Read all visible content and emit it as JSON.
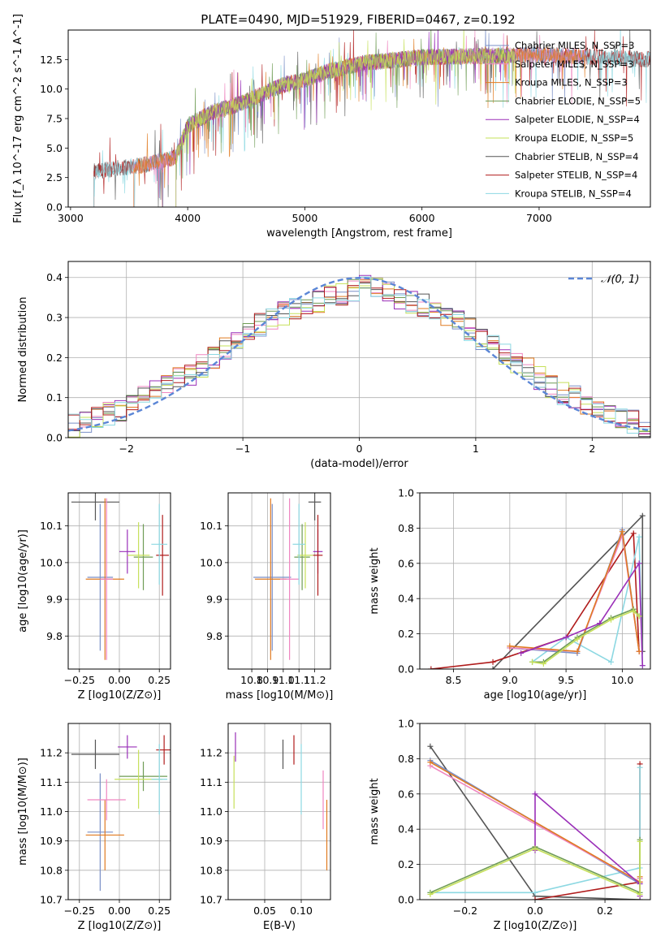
{
  "figure": {
    "title": "PLATE=0490, MJD=51929, FIBERID=0467, z=0.192"
  },
  "colors": {
    "Chabrier MILES": "#7a8fc7",
    "Salpeter MILES": "#ef86c0",
    "Kroupa MILES": "#e07b22",
    "Chabrier ELODIE": "#6f9c55",
    "Salpeter ELODIE": "#9a2fb8",
    "Kroupa ELODIE": "#c6e05a",
    "Chabrier STELIB": "#555555",
    "Salpeter STELIB": "#b01c1c",
    "Kroupa STELIB": "#8cd8e2",
    "gaussian": "#5b86d6"
  },
  "chart_data": [
    {
      "id": "spectrum",
      "type": "line",
      "xlabel": "wavelength [Angstrom, rest frame]",
      "ylabel": "Flux [f_λ 10^-17 erg cm^-2 s^-1 A^-1]",
      "xlim": [
        2980,
        7950
      ],
      "ylim": [
        0,
        15
      ],
      "xticks": [
        3000,
        4000,
        5000,
        6000,
        7000
      ],
      "yticks": [
        0.0,
        2.5,
        5.0,
        7.5,
        10.0,
        12.5
      ],
      "legend_position": "right",
      "legend": [
        "Chabrier MILES, N_SSP=3",
        "Salpeter MILES, N_SSP=3",
        "Kroupa MILES, N_SSP=3",
        "Chabrier ELODIE, N_SSP=5",
        "Salpeter ELODIE, N_SSP=4",
        "Kroupa ELODIE, N_SSP=5",
        "Chabrier STELIB, N_SSP=4",
        "Salpeter STELIB, N_SSP=4",
        "Kroupa STELIB, N_SSP=4"
      ],
      "continuum": [
        {
          "x": 3200,
          "y": 3.0
        },
        {
          "x": 3400,
          "y": 3.3
        },
        {
          "x": 3600,
          "y": 3.5
        },
        {
          "x": 3800,
          "y": 4.0
        },
        {
          "x": 3900,
          "y": 4.2
        },
        {
          "x": 4000,
          "y": 6.9
        },
        {
          "x": 4200,
          "y": 8.0
        },
        {
          "x": 4400,
          "y": 8.6
        },
        {
          "x": 4600,
          "y": 9.4
        },
        {
          "x": 4800,
          "y": 10.3
        },
        {
          "x": 5000,
          "y": 10.8
        },
        {
          "x": 5200,
          "y": 11.5
        },
        {
          "x": 5500,
          "y": 12.2
        },
        {
          "x": 6000,
          "y": 12.7
        },
        {
          "x": 6500,
          "y": 12.8
        },
        {
          "x": 7000,
          "y": 12.9
        },
        {
          "x": 7500,
          "y": 12.7
        },
        {
          "x": 7950,
          "y": 12.5
        }
      ],
      "model_ranges": [
        {
          "series": "Chabrier STELIB",
          "xmin": 3200,
          "xmax": 7950
        },
        {
          "series": "Salpeter STELIB",
          "xmin": 3200,
          "xmax": 7950
        },
        {
          "series": "Kroupa STELIB",
          "xmin": 3200,
          "xmax": 7950
        },
        {
          "series": "Chabrier MILES",
          "xmin": 3540,
          "xmax": 7400
        },
        {
          "series": "Salpeter MILES",
          "xmin": 3540,
          "xmax": 7400
        },
        {
          "series": "Kroupa MILES",
          "xmin": 3540,
          "xmax": 7400
        },
        {
          "series": "Chabrier ELODIE",
          "xmin": 3900,
          "xmax": 6800
        },
        {
          "series": "Salpeter ELODIE",
          "xmin": 3900,
          "xmax": 6800
        },
        {
          "series": "Kroupa ELODIE",
          "xmin": 3900,
          "xmax": 6800
        }
      ]
    },
    {
      "id": "residuals",
      "type": "area",
      "xlabel": "(data-model)/error",
      "ylabel": "Normed distribution",
      "xlim": [
        -2.5,
        2.5
      ],
      "ylim": [
        0,
        0.44
      ],
      "xticks": [
        -2,
        -1,
        0,
        1,
        2
      ],
      "yticks": [
        0.0,
        0.1,
        0.2,
        0.3,
        0.4
      ],
      "grid": true,
      "legend_position": "top-right",
      "legend": [
        "𝒩(0, 1)"
      ],
      "bin_width": 0.1,
      "bin_start": -2.5,
      "reference_values": [
        0.03,
        0.04,
        0.05,
        0.06,
        0.07,
        0.08,
        0.1,
        0.12,
        0.13,
        0.15,
        0.16,
        0.18,
        0.2,
        0.22,
        0.24,
        0.26,
        0.28,
        0.3,
        0.31,
        0.32,
        0.33,
        0.34,
        0.35,
        0.36,
        0.37,
        0.38,
        0.37,
        0.36,
        0.35,
        0.34,
        0.33,
        0.32,
        0.3,
        0.29,
        0.27,
        0.25,
        0.23,
        0.21,
        0.19,
        0.17,
        0.15,
        0.13,
        0.11,
        0.1,
        0.08,
        0.07,
        0.06,
        0.05,
        0.04,
        0.03
      ],
      "gaussian": {
        "mu": 0,
        "sigma": 1
      }
    },
    {
      "id": "age-vs-Z",
      "type": "scatter",
      "xlabel": "Z [log10(Z/Z⊙)]",
      "ylabel": "age  [log10(age/yr)]",
      "xlim": [
        -0.32,
        0.32
      ],
      "ylim": [
        9.71,
        10.19
      ],
      "xticks": [
        -0.25,
        0.0,
        0.25
      ],
      "yticks": [
        9.8,
        9.9,
        10.0,
        10.1
      ],
      "grid": true,
      "errorbars": [
        {
          "series": "Chabrier STELIB",
          "x": -0.15,
          "y": 10.165,
          "xerr": 0.15,
          "yerr": 0.05
        },
        {
          "series": "Chabrier MILES",
          "x": -0.12,
          "y": 9.96,
          "xerr": 0.08,
          "yerr": 0.2
        },
        {
          "series": "Kroupa MILES",
          "x": -0.09,
          "y": 9.955,
          "xerr": 0.12,
          "yerr": 0.22
        },
        {
          "series": "Salpeter MILES",
          "x": -0.08,
          "y": 9.955,
          "xerr": 0.04,
          "yerr": 0.22
        },
        {
          "series": "Salpeter ELODIE",
          "x": 0.05,
          "y": 10.03,
          "xerr": 0.05,
          "yerr": 0.06
        },
        {
          "series": "Chabrier ELODIE",
          "x": 0.15,
          "y": 10.015,
          "xerr": 0.06,
          "yerr": 0.09
        },
        {
          "series": "Kroupa ELODIE",
          "x": 0.12,
          "y": 10.02,
          "xerr": 0.07,
          "yerr": 0.09
        },
        {
          "series": "Salpeter STELIB",
          "x": 0.27,
          "y": 10.02,
          "xerr": 0.04,
          "yerr": 0.11
        },
        {
          "series": "Kroupa STELIB",
          "x": 0.25,
          "y": 10.05,
          "xerr": 0.05,
          "yerr": 0.11
        }
      ]
    },
    {
      "id": "age-vs-mass",
      "type": "scatter",
      "xlabel": "mass [log10(M/M⊙)]",
      "ylabel": "",
      "xlim": [
        10.65,
        11.3
      ],
      "ylim": [
        9.71,
        10.19
      ],
      "xticks": [
        10.8,
        10.9,
        11.0,
        11.1,
        11.2
      ],
      "yticks": [
        9.8,
        9.9,
        10.0,
        10.1
      ],
      "grid": true,
      "errorbars": [
        {
          "series": "Chabrier STELIB",
          "x": 11.2,
          "y": 10.165,
          "xerr": 0.04,
          "yerr": 0.05
        },
        {
          "series": "Chabrier MILES",
          "x": 10.93,
          "y": 9.96,
          "xerr": 0.12,
          "yerr": 0.2
        },
        {
          "series": "Kroupa MILES",
          "x": 10.92,
          "y": 9.955,
          "xerr": 0.1,
          "yerr": 0.22
        },
        {
          "series": "Salpeter MILES",
          "x": 11.04,
          "y": 9.955,
          "xerr": 0.06,
          "yerr": 0.22
        },
        {
          "series": "Salpeter ELODIE",
          "x": 11.22,
          "y": 10.03,
          "xerr": 0.03,
          "yerr": 0.06
        },
        {
          "series": "Chabrier ELODIE",
          "x": 11.12,
          "y": 10.015,
          "xerr": 0.05,
          "yerr": 0.09
        },
        {
          "series": "Kroupa ELODIE",
          "x": 11.14,
          "y": 10.02,
          "xerr": 0.05,
          "yerr": 0.09
        },
        {
          "series": "Salpeter STELIB",
          "x": 11.22,
          "y": 10.02,
          "xerr": 0.03,
          "yerr": 0.11
        },
        {
          "series": "Kroupa STELIB",
          "x": 11.1,
          "y": 10.05,
          "xerr": 0.04,
          "yerr": 0.11
        }
      ]
    },
    {
      "id": "weight-vs-age",
      "type": "line",
      "xlabel": "age  [log10(age/yr)]",
      "ylabel": "mass weight",
      "xlim": [
        8.2,
        10.25
      ],
      "ylim": [
        0,
        1.0
      ],
      "xticks": [
        8.5,
        9.0,
        9.5,
        10.0
      ],
      "yticks": [
        0.0,
        0.2,
        0.4,
        0.6,
        0.8,
        1.0
      ],
      "grid": true,
      "series": [
        {
          "name": "Chabrier STELIB",
          "x": [
            8.85,
            10.18,
            10.18
          ],
          "y": [
            0.0,
            0.87,
            0.1
          ]
        },
        {
          "name": "Salpeter STELIB",
          "x": [
            8.3,
            8.85,
            9.5,
            10.1,
            10.15
          ],
          "y": [
            0.0,
            0.04,
            0.18,
            0.77,
            0.1
          ]
        },
        {
          "name": "Kroupa STELIB",
          "x": [
            9.2,
            9.5,
            9.9,
            10.15,
            10.18
          ],
          "y": [
            0.04,
            0.18,
            0.04,
            0.75,
            0.02
          ]
        },
        {
          "name": "Chabrier MILES",
          "x": [
            9.0,
            9.6,
            10.0,
            10.15
          ],
          "y": [
            0.12,
            0.09,
            0.79,
            0.1
          ]
        },
        {
          "name": "Salpeter MILES",
          "x": [
            9.0,
            9.6,
            10.0,
            10.15
          ],
          "y": [
            0.12,
            0.1,
            0.76,
            0.1
          ]
        },
        {
          "name": "Kroupa MILES",
          "x": [
            9.0,
            9.6,
            10.0,
            10.15
          ],
          "y": [
            0.13,
            0.1,
            0.78,
            0.1
          ]
        },
        {
          "name": "Chabrier ELODIE",
          "x": [
            9.2,
            9.3,
            9.6,
            9.9,
            10.1,
            10.15
          ],
          "y": [
            0.04,
            0.04,
            0.18,
            0.29,
            0.34,
            0.3
          ]
        },
        {
          "name": "Salpeter ELODIE",
          "x": [
            9.1,
            9.5,
            9.8,
            10.15,
            10.18
          ],
          "y": [
            0.09,
            0.18,
            0.26,
            0.6,
            0.02
          ]
        },
        {
          "name": "Kroupa ELODIE",
          "x": [
            9.2,
            9.3,
            9.6,
            9.9,
            10.1,
            10.15
          ],
          "y": [
            0.04,
            0.03,
            0.17,
            0.28,
            0.33,
            0.3
          ]
        }
      ]
    },
    {
      "id": "mass-vs-Z",
      "type": "scatter",
      "xlabel": "Z [log10(Z/Z⊙)]",
      "ylabel": "mass [log10(M/M⊙)]",
      "xlim": [
        -0.32,
        0.32
      ],
      "ylim": [
        10.7,
        11.3
      ],
      "xticks": [
        -0.25,
        0.0,
        0.25
      ],
      "yticks": [
        10.7,
        10.8,
        10.9,
        11.0,
        11.1,
        11.2
      ],
      "grid": true,
      "errorbars": [
        {
          "series": "Chabrier STELIB",
          "x": -0.15,
          "y": 11.195,
          "xerr": 0.15,
          "yerr": 0.05
        },
        {
          "series": "Chabrier MILES",
          "x": -0.12,
          "y": 10.93,
          "xerr": 0.08,
          "yerr": 0.2
        },
        {
          "series": "Kroupa MILES",
          "x": -0.09,
          "y": 10.92,
          "xerr": 0.12,
          "yerr": 0.12
        },
        {
          "series": "Salpeter MILES",
          "x": -0.08,
          "y": 11.04,
          "xerr": 0.12,
          "yerr": 0.07
        },
        {
          "series": "Salpeter ELODIE",
          "x": 0.05,
          "y": 11.22,
          "xerr": 0.06,
          "yerr": 0.04
        },
        {
          "series": "Chabrier ELODIE",
          "x": 0.15,
          "y": 11.12,
          "xerr": 0.15,
          "yerr": 0.05
        },
        {
          "series": "Kroupa ELODIE",
          "x": 0.12,
          "y": 11.11,
          "xerr": 0.15,
          "yerr": 0.1
        },
        {
          "series": "Salpeter STELIB",
          "x": 0.28,
          "y": 11.21,
          "xerr": 0.05,
          "yerr": 0.05
        },
        {
          "series": "Kroupa STELIB",
          "x": 0.25,
          "y": 11.11,
          "xerr": 0.05,
          "yerr": 0.12
        }
      ]
    },
    {
      "id": "mass-vs-EBV",
      "type": "scatter",
      "xlabel": "E(B-V)",
      "ylabel": "",
      "xlim": [
        0.0,
        0.14
      ],
      "ylim": [
        10.7,
        11.3
      ],
      "xticks": [
        0.05,
        0.1
      ],
      "yticks": [
        10.7,
        10.8,
        10.9,
        11.0,
        11.1,
        11.2
      ],
      "grid": true,
      "errorbars": [
        {
          "series": "Chabrier STELIB",
          "x": 0.075,
          "y": 11.195,
          "xerr": 0.0,
          "yerr": 0.05
        },
        {
          "series": "Salpeter STELIB",
          "x": 0.09,
          "y": 11.21,
          "xerr": 0.0,
          "yerr": 0.05
        },
        {
          "series": "Salpeter ELODIE",
          "x": 0.01,
          "y": 11.22,
          "xerr": 0.0,
          "yerr": 0.05
        },
        {
          "series": "Kroupa ELODIE",
          "x": 0.008,
          "y": 11.1,
          "xerr": 0.0,
          "yerr": 0.09
        },
        {
          "series": "Kroupa STELIB",
          "x": 0.1,
          "y": 11.11,
          "xerr": 0.0,
          "yerr": 0.12
        },
        {
          "series": "Kroupa MILES",
          "x": 0.135,
          "y": 10.92,
          "xerr": 0.0,
          "yerr": 0.12
        },
        {
          "series": "Salpeter MILES",
          "x": 0.13,
          "y": 11.04,
          "xerr": 0.0,
          "yerr": 0.1
        }
      ]
    },
    {
      "id": "weight-vs-Z",
      "type": "line",
      "xlabel": "Z [log10(Z/Z⊙)]",
      "ylabel": "mass weight",
      "xlim": [
        -0.33,
        0.33
      ],
      "ylim": [
        0,
        1.0
      ],
      "xticks": [
        -0.2,
        0.0,
        0.2
      ],
      "yticks": [
        0.0,
        0.2,
        0.4,
        0.6,
        0.8,
        1.0
      ],
      "grid": true,
      "series": [
        {
          "name": "Chabrier STELIB",
          "x": [
            -0.3,
            0.0,
            0.3
          ],
          "y": [
            0.87,
            0.02,
            0.0
          ]
        },
        {
          "name": "Salpeter STELIB",
          "x": [
            0.0,
            0.3,
            0.3
          ],
          "y": [
            0.0,
            0.1,
            0.77
          ]
        },
        {
          "name": "Kroupa STELIB",
          "x": [
            -0.3,
            0.0,
            0.3,
            0.3
          ],
          "y": [
            0.04,
            0.04,
            0.18,
            0.75
          ]
        },
        {
          "name": "Chabrier MILES",
          "x": [
            -0.3,
            0.3,
            0.3
          ],
          "y": [
            0.79,
            0.09,
            0.12
          ]
        },
        {
          "name": "Salpeter MILES",
          "x": [
            -0.3,
            0.3,
            0.3
          ],
          "y": [
            0.76,
            0.1,
            0.12
          ]
        },
        {
          "name": "Kroupa MILES",
          "x": [
            -0.3,
            0.3,
            0.3
          ],
          "y": [
            0.78,
            0.1,
            0.13
          ]
        },
        {
          "name": "Chabrier ELODIE",
          "x": [
            -0.3,
            0.0,
            0.3,
            0.3
          ],
          "y": [
            0.04,
            0.3,
            0.04,
            0.34
          ]
        },
        {
          "name": "Salpeter ELODIE",
          "x": [
            0.0,
            0.0,
            0.3,
            0.3
          ],
          "y": [
            0.28,
            0.6,
            0.09,
            0.02
          ]
        },
        {
          "name": "Kroupa ELODIE",
          "x": [
            -0.3,
            0.0,
            0.3,
            0.3
          ],
          "y": [
            0.03,
            0.29,
            0.03,
            0.33
          ]
        }
      ]
    }
  ]
}
